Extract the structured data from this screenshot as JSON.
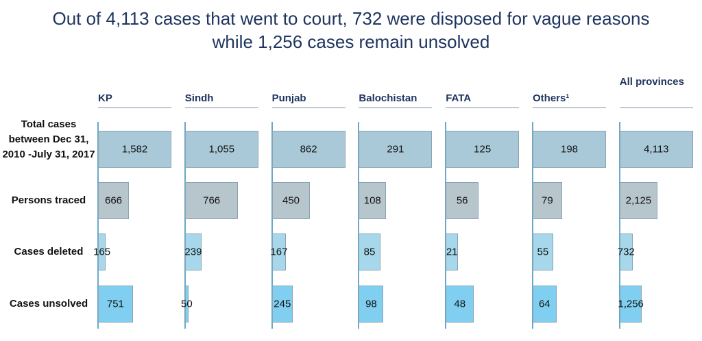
{
  "chart_data": {
    "type": "bar",
    "title": "Out of 4,113 cases that went to court, 732 were disposed for vague reasons while 1,256 cases remain unsolved",
    "categories": [
      "KP",
      "Sindh",
      "Punjab",
      "Balochistan",
      "FATA",
      "Others¹",
      "All provinces"
    ],
    "series": [
      {
        "name": "Total cases between Dec 31, 2010 -July 31, 2017",
        "color": "#a9c9d8",
        "values": [
          1582,
          1055,
          862,
          291,
          125,
          198,
          4113
        ],
        "value_labels": [
          "1,582",
          "1,055",
          "862",
          "291",
          "125",
          "198",
          "4,113"
        ]
      },
      {
        "name": "Persons traced",
        "color": "#b7c5cd",
        "values": [
          666,
          766,
          450,
          108,
          56,
          79,
          2125
        ],
        "value_labels": [
          "666",
          "766",
          "450",
          "108",
          "56",
          "79",
          "2,125"
        ]
      },
      {
        "name": "Cases deleted",
        "color": "#a6d7ea",
        "values": [
          165,
          239,
          167,
          85,
          21,
          55,
          732
        ],
        "value_labels": [
          "165",
          "239",
          "167",
          "85",
          "21",
          "55",
          "732"
        ]
      },
      {
        "name": "Cases unsolved",
        "color": "#80cff0",
        "values": [
          751,
          50,
          245,
          98,
          48,
          64,
          1256
        ],
        "value_labels": [
          "751",
          "50",
          "245",
          "98",
          "48",
          "64",
          "1,256"
        ]
      }
    ]
  }
}
